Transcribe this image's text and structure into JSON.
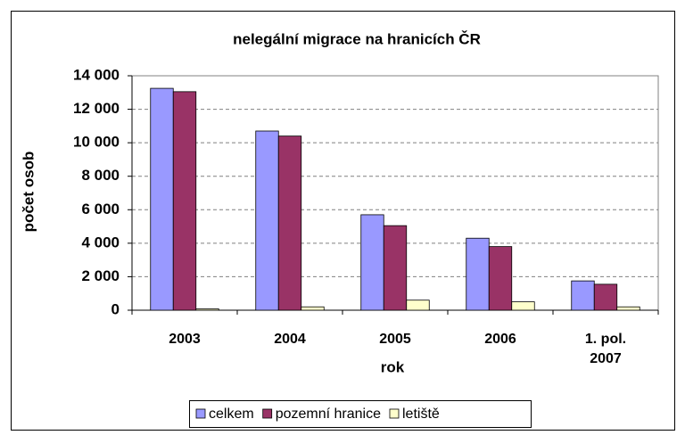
{
  "chart_data": {
    "type": "bar",
    "title": "nelegální migrace na hranicích ČR",
    "x_label": "rok",
    "y_label": "počet osob",
    "categories": [
      "2003",
      "2004",
      "2005",
      "2006",
      "1. pol. 2007"
    ],
    "series": [
      {
        "name": "celkem",
        "color": "#9999ff",
        "values": [
          13250,
          10700,
          5700,
          4300,
          1750
        ]
      },
      {
        "name": "pozemní hranice",
        "color": "#993366",
        "values": [
          13050,
          10400,
          5050,
          3800,
          1550
        ]
      },
      {
        "name": "letiště",
        "color": "#ffffcc",
        "values": [
          80,
          200,
          600,
          500,
          200
        ]
      }
    ],
    "ylim": [
      0,
      14000
    ],
    "yticks": [
      0,
      {
        "value": 2000,
        "label": "2 000"
      },
      {
        "value": 4000,
        "label": "4 000"
      },
      {
        "value": 6000,
        "label": "6 000"
      },
      {
        "value": 8000,
        "label": "8 000"
      },
      {
        "value": 10000,
        "label": "10 000"
      },
      {
        "value": 12000,
        "label": "12 000"
      },
      {
        "value": 14000,
        "label": "14 000"
      }
    ],
    "grid": true,
    "legend": "bottom"
  }
}
